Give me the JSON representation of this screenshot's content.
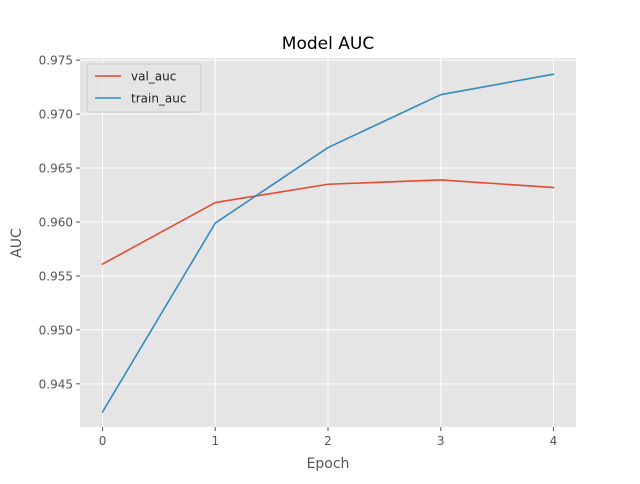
{
  "chart_data": {
    "type": "line",
    "title": "Model AUC",
    "xlabel": "Epoch",
    "ylabel": "AUC",
    "x": [
      0,
      1,
      2,
      3,
      4
    ],
    "x_ticks": [
      0,
      1,
      2,
      3,
      4
    ],
    "y_ticks": [
      0.945,
      0.95,
      0.955,
      0.96,
      0.965,
      0.97,
      0.975
    ],
    "y_tick_labels": [
      "0.945",
      "0.950",
      "0.955",
      "0.960",
      "0.965",
      "0.970",
      "0.975"
    ],
    "xlim": [
      -0.2,
      4.2
    ],
    "ylim": [
      0.941,
      0.9752
    ],
    "grid": true,
    "legend_position": "top-left",
    "series": [
      {
        "name": "val_auc",
        "color": "#E24A33",
        "values": [
          0.9561,
          0.9618,
          0.9635,
          0.9639,
          0.9632
        ]
      },
      {
        "name": "train_auc",
        "color": "#348ABD",
        "values": [
          0.9424,
          0.9599,
          0.9669,
          0.9718,
          0.9737
        ]
      }
    ],
    "colors": {
      "plot_background": "#E5E5E5",
      "grid": "#FFFFFF",
      "text": "#555555",
      "title": "#000000"
    }
  }
}
